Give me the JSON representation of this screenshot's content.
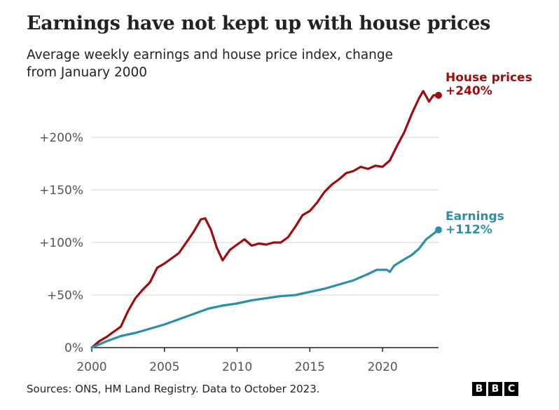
{
  "header": {
    "title": "Earnings have not kept up with house prices",
    "subtitle": "Average weekly earnings and house price index, change from January 2000"
  },
  "footer": {
    "source": "Sources: ONS, HM Land Registry. Data to October 2023.",
    "logo_letters": [
      "B",
      "B",
      "C"
    ]
  },
  "chart_data": {
    "type": "line",
    "title": "Earnings have not kept up with house prices",
    "subtitle": "Average weekly earnings and house price index, change from January 2000",
    "xlabel": "",
    "ylabel": "",
    "xlim": [
      2000,
      2023.85
    ],
    "ylim": [
      0,
      240
    ],
    "x_ticks": [
      2000,
      2005,
      2010,
      2015,
      2020
    ],
    "y_ticks": [
      0,
      50,
      100,
      150,
      200
    ],
    "y_tick_labels": [
      "0%",
      "+50%",
      "+100%",
      "+150%",
      "+200%"
    ],
    "grid": true,
    "series": [
      {
        "name": "House prices",
        "end_label": "+240%",
        "color": "#9e0b0b",
        "points": [
          [
            2000.0,
            0
          ],
          [
            2000.5,
            6
          ],
          [
            2001.0,
            10
          ],
          [
            2001.5,
            15
          ],
          [
            2002.0,
            20
          ],
          [
            2002.5,
            35
          ],
          [
            2003.0,
            47
          ],
          [
            2003.5,
            55
          ],
          [
            2004.0,
            62
          ],
          [
            2004.5,
            76
          ],
          [
            2005.0,
            80
          ],
          [
            2005.5,
            85
          ],
          [
            2006.0,
            90
          ],
          [
            2006.5,
            100
          ],
          [
            2007.0,
            110
          ],
          [
            2007.5,
            122
          ],
          [
            2007.8,
            123
          ],
          [
            2008.2,
            112
          ],
          [
            2008.6,
            95
          ],
          [
            2009.0,
            83
          ],
          [
            2009.5,
            93
          ],
          [
            2010.0,
            98
          ],
          [
            2010.5,
            103
          ],
          [
            2011.0,
            97
          ],
          [
            2011.5,
            99
          ],
          [
            2012.0,
            98
          ],
          [
            2012.5,
            100
          ],
          [
            2013.0,
            100
          ],
          [
            2013.5,
            105
          ],
          [
            2014.0,
            115
          ],
          [
            2014.5,
            126
          ],
          [
            2015.0,
            130
          ],
          [
            2015.5,
            138
          ],
          [
            2016.0,
            148
          ],
          [
            2016.5,
            155
          ],
          [
            2017.0,
            160
          ],
          [
            2017.5,
            166
          ],
          [
            2018.0,
            168
          ],
          [
            2018.5,
            172
          ],
          [
            2019.0,
            170
          ],
          [
            2019.5,
            173
          ],
          [
            2020.0,
            172
          ],
          [
            2020.5,
            178
          ],
          [
            2021.0,
            192
          ],
          [
            2021.5,
            205
          ],
          [
            2022.0,
            222
          ],
          [
            2022.5,
            237
          ],
          [
            2022.8,
            244
          ],
          [
            2023.2,
            234
          ],
          [
            2023.5,
            240
          ],
          [
            2023.85,
            240
          ]
        ]
      },
      {
        "name": "Earnings",
        "end_label": "+112%",
        "color": "#2a8fab",
        "points": [
          [
            2000.0,
            0
          ],
          [
            2001.0,
            6
          ],
          [
            2002.0,
            11
          ],
          [
            2003.0,
            14
          ],
          [
            2004.0,
            18
          ],
          [
            2005.0,
            22
          ],
          [
            2006.0,
            27
          ],
          [
            2007.0,
            32
          ],
          [
            2008.0,
            37
          ],
          [
            2009.0,
            40
          ],
          [
            2010.0,
            42
          ],
          [
            2011.0,
            45
          ],
          [
            2012.0,
            47
          ],
          [
            2013.0,
            49
          ],
          [
            2014.0,
            50
          ],
          [
            2015.0,
            53
          ],
          [
            2016.0,
            56
          ],
          [
            2017.0,
            60
          ],
          [
            2018.0,
            64
          ],
          [
            2019.0,
            70
          ],
          [
            2019.6,
            74
          ],
          [
            2020.3,
            74
          ],
          [
            2020.5,
            72
          ],
          [
            2020.8,
            78
          ],
          [
            2021.5,
            84
          ],
          [
            2022.0,
            88
          ],
          [
            2022.5,
            94
          ],
          [
            2023.0,
            103
          ],
          [
            2023.85,
            112
          ]
        ]
      }
    ]
  }
}
